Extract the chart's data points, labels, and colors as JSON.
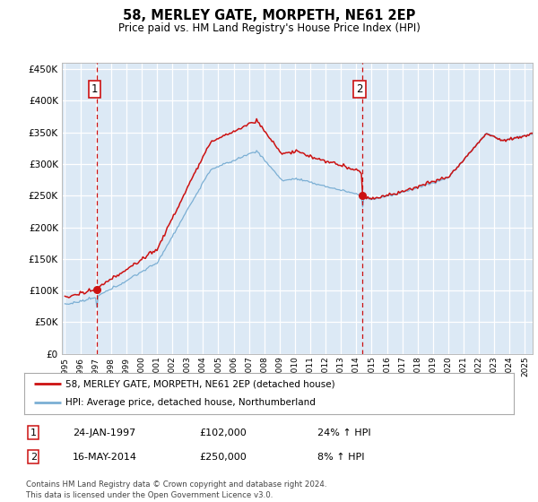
{
  "title": "58, MERLEY GATE, MORPETH, NE61 2EP",
  "subtitle": "Price paid vs. HM Land Registry's House Price Index (HPI)",
  "legend_line1": "58, MERLEY GATE, MORPETH, NE61 2EP (detached house)",
  "legend_line2": "HPI: Average price, detached house, Northumberland",
  "annotation1_date": "24-JAN-1997",
  "annotation1_price": "£102,000",
  "annotation1_hpi": "24% ↑ HPI",
  "annotation2_date": "16-MAY-2014",
  "annotation2_price": "£250,000",
  "annotation2_hpi": "8% ↑ HPI",
  "footer": "Contains HM Land Registry data © Crown copyright and database right 2024.\nThis data is licensed under the Open Government Licence v3.0.",
  "sale1_year": 1997.07,
  "sale1_value": 102000,
  "sale2_year": 2014.37,
  "sale2_value": 250000,
  "ylim": [
    0,
    460000
  ],
  "xlim_start": 1994.8,
  "xlim_end": 2025.5,
  "plot_bg_color": "#dce9f5",
  "grid_color": "#ffffff",
  "hpi_line_color": "#7bafd4",
  "price_line_color": "#cc1111",
  "sale_dot_color": "#cc1111",
  "vline_color": "#cc1111",
  "box_edge_color": "#cc1111"
}
